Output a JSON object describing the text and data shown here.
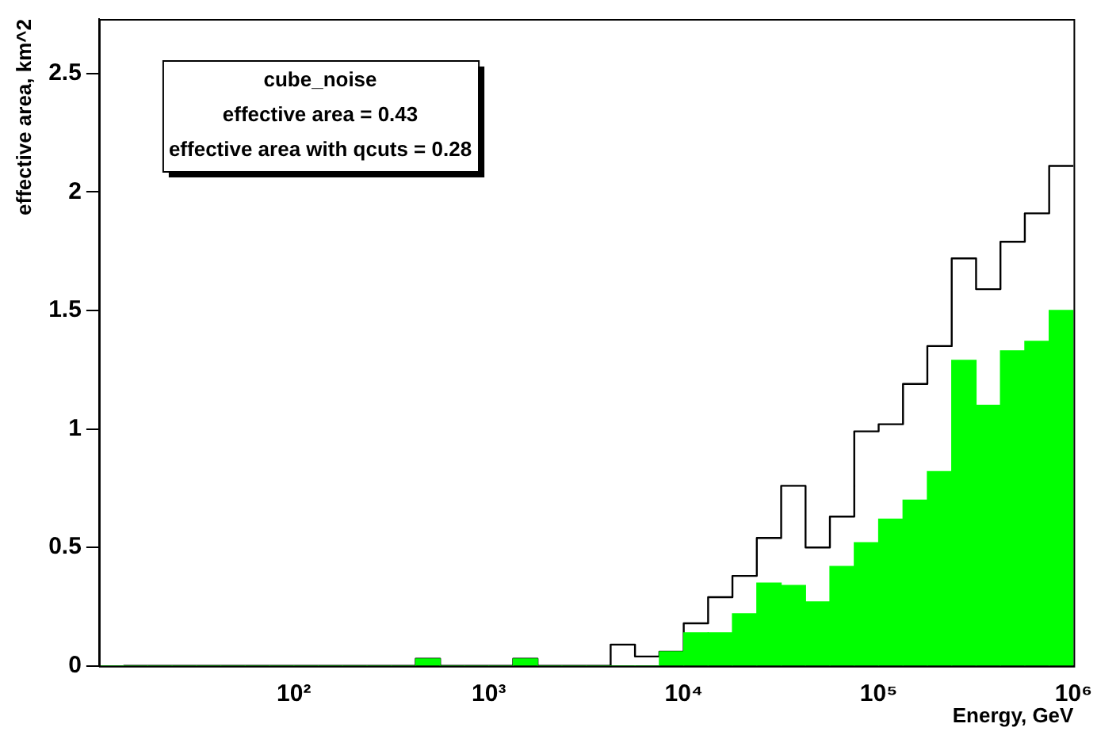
{
  "chart_data": {
    "type": "histogram",
    "bins": [
      10,
      13.34,
      17.78,
      23.71,
      31.62,
      42.17,
      56.23,
      74.99,
      100,
      133.4,
      177.8,
      237.1,
      316.2,
      421.7,
      562.3,
      749.9,
      1000,
      1334,
      1778,
      2371,
      3162,
      4217,
      5623,
      7499,
      10000,
      13340,
      17780,
      23710,
      31620,
      42170,
      56230,
      74990,
      100000,
      133400,
      177800,
      237100,
      316200,
      421700,
      562300,
      749900,
      1000000
    ],
    "series": [
      {
        "type": "step",
        "color": "#000000",
        "x": [
          13.34,
          17.78,
          23.71,
          31.62,
          42.17,
          56.23,
          74.99,
          100,
          133.4,
          177.8,
          237.1,
          316.2,
          421.7,
          562.3,
          749.9,
          1000,
          1334,
          1778,
          2371,
          3162,
          4217,
          5623,
          7499,
          10000,
          13340,
          17780,
          23710,
          31620,
          42170,
          56230,
          74990,
          100000,
          133400,
          177800,
          237100,
          316200,
          421700,
          562300,
          749900,
          1000000
        ],
        "values": [
          0,
          0,
          0,
          0,
          0,
          0,
          0,
          0,
          0,
          0,
          0,
          0,
          0,
          0.03,
          0,
          0,
          0,
          0.03,
          0,
          0,
          0,
          0.09,
          0.04,
          0.06,
          0.18,
          0.29,
          0.38,
          0.54,
          0.76,
          0.5,
          0.63,
          0.99,
          1.02,
          1.19,
          1.35,
          1.72,
          1.59,
          1.79,
          1.91,
          2.11
        ]
      },
      {
        "color": "#00ff00",
        "values": [
          0,
          0,
          0,
          0,
          0,
          0,
          0,
          0,
          0,
          0,
          0,
          0,
          0,
          0.03,
          0,
          0,
          0,
          0.03,
          0,
          0,
          0,
          0,
          0,
          0.06,
          0.14,
          0.14,
          0.22,
          0.35,
          0.34,
          0.27,
          0.42,
          0.52,
          0.62,
          0.7,
          0.82,
          1.29,
          1.1,
          1.33,
          1.37,
          1.5
        ]
      }
    ],
    "xlabel": "Energy, GeV",
    "ylabel": "effective area, km^2",
    "log": "x",
    "xlim": [
      10,
      1000000
    ],
    "xticks": [
      {
        "value": 100,
        "label": "10²"
      },
      {
        "value": 1000,
        "label": "10³"
      },
      {
        "value": 10000,
        "label": "10⁴"
      },
      {
        "value": 100000,
        "label": "10⁵"
      },
      {
        "value": 1000000,
        "label": "10⁶"
      }
    ],
    "ylim": [
      0,
      2.73
    ],
    "yticks": [
      0,
      {
        "value": 0.5,
        "label": "0.5"
      },
      1,
      {
        "value": 1.5,
        "label": "1.5"
      },
      2,
      {
        "value": 2.5,
        "label": "2.5"
      }
    ],
    "grid": false,
    "legend": false,
    "annotations": [
      "cube_noise",
      "effective area = 0.43",
      "effective area with qcuts = 0.28"
    ]
  }
}
